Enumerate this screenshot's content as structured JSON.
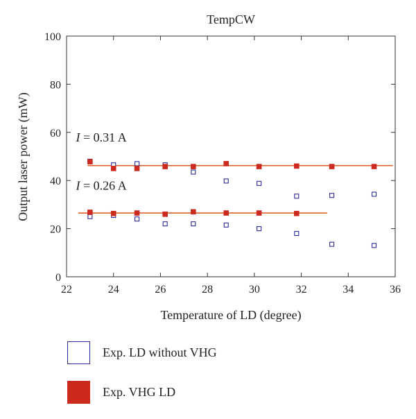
{
  "chart_data": {
    "type": "scatter",
    "title": "TempCW",
    "xlabel": "Temperature of LD (degree)",
    "ylabel": "Output laser power (mW)",
    "xlim": [
      22,
      36
    ],
    "ylim": [
      0,
      100
    ],
    "xticks": [
      22,
      24,
      26,
      28,
      30,
      32,
      34,
      36
    ],
    "yticks": [
      0,
      20,
      40,
      60,
      80,
      100
    ],
    "grid": false,
    "legend_position": "bottom",
    "series": [
      {
        "name": "Exp. LD without VHG",
        "marker": "hollow-square",
        "color": "#2b2b9a",
        "points": [
          [
            23.0,
            48.0
          ],
          [
            24.0,
            46.5
          ],
          [
            25.0,
            47.0
          ],
          [
            26.2,
            46.5
          ],
          [
            27.4,
            43.5
          ],
          [
            28.8,
            39.8
          ],
          [
            30.2,
            38.8
          ],
          [
            31.8,
            33.5
          ],
          [
            33.3,
            33.8
          ],
          [
            35.1,
            34.3
          ],
          [
            23.0,
            25.0
          ],
          [
            24.0,
            25.5
          ],
          [
            25.0,
            24.0
          ],
          [
            26.2,
            22.0
          ],
          [
            27.4,
            22.0
          ],
          [
            28.8,
            21.5
          ],
          [
            30.2,
            20.0
          ],
          [
            31.8,
            18.0
          ],
          [
            33.3,
            13.5
          ],
          [
            35.1,
            13.0
          ]
        ]
      },
      {
        "name": "Exp. VHG LD",
        "marker": "filled-square",
        "color": "#cc2a1e",
        "points": [
          [
            23.0,
            47.8
          ],
          [
            24.0,
            45.0
          ],
          [
            25.0,
            45.0
          ],
          [
            26.2,
            45.8
          ],
          [
            27.4,
            45.8
          ],
          [
            28.8,
            47.0
          ],
          [
            30.2,
            45.8
          ],
          [
            31.8,
            46.0
          ],
          [
            33.3,
            45.8
          ],
          [
            35.1,
            45.8
          ],
          [
            23.0,
            26.8
          ],
          [
            24.0,
            26.3
          ],
          [
            25.0,
            26.5
          ],
          [
            26.2,
            26.0
          ],
          [
            27.4,
            27.0
          ],
          [
            28.8,
            26.5
          ],
          [
            30.2,
            26.5
          ],
          [
            31.8,
            26.3
          ]
        ]
      }
    ],
    "fit_lines": [
      {
        "x": [
          22.9,
          35.9
        ],
        "y": [
          46.2,
          46.2
        ],
        "color": "#e0622a"
      },
      {
        "x": [
          22.5,
          33.1
        ],
        "y": [
          26.5,
          26.5
        ],
        "color": "#e0622a"
      }
    ],
    "annotations": [
      {
        "italic": "I",
        "text": " = 0.31 A",
        "x": 22.4,
        "y": 56.2
      },
      {
        "italic": "I",
        "text": " = 0.26 A",
        "x": 22.4,
        "y": 36.2
      }
    ]
  }
}
